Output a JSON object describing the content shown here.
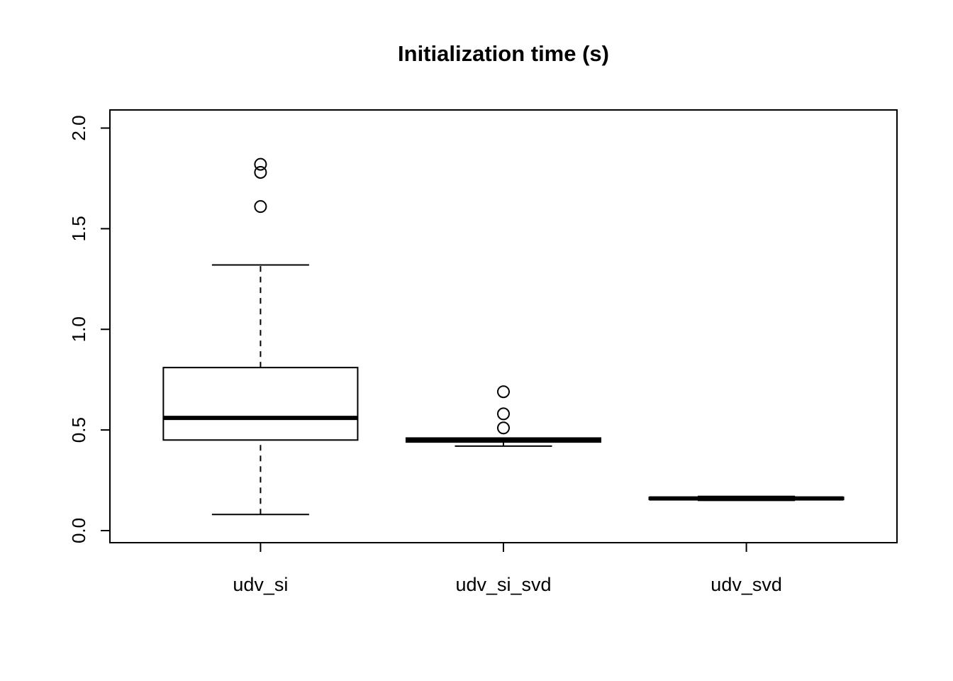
{
  "chart_data": {
    "type": "boxplot",
    "title": "Initialization time (s)",
    "categories": [
      "udv_si",
      "udv_si_svd",
      "udv_svd"
    ],
    "series": [
      {
        "name": "udv_si",
        "whisker_low": 0.08,
        "q1": 0.45,
        "median": 0.56,
        "q3": 0.81,
        "whisker_high": 1.32,
        "outliers": [
          1.61,
          1.78,
          1.82
        ]
      },
      {
        "name": "udv_si_svd",
        "whisker_low": 0.42,
        "q1": 0.44,
        "median": 0.45,
        "q3": 0.46,
        "whisker_high": 0.46,
        "outliers": [
          0.51,
          0.58,
          0.69
        ]
      },
      {
        "name": "udv_svd",
        "whisker_low": 0.15,
        "q1": 0.155,
        "median": 0.16,
        "q3": 0.165,
        "whisker_high": 0.17,
        "outliers": []
      }
    ],
    "y_ticks": [
      0.0,
      0.5,
      1.0,
      1.5,
      2.0
    ],
    "ylim": [
      -0.06,
      2.09
    ],
    "xlabel": "",
    "ylabel": "",
    "grid": false,
    "legend": false,
    "colors": {
      "stroke": "#000000",
      "fill": "#ffffff",
      "background": "#ffffff"
    }
  }
}
